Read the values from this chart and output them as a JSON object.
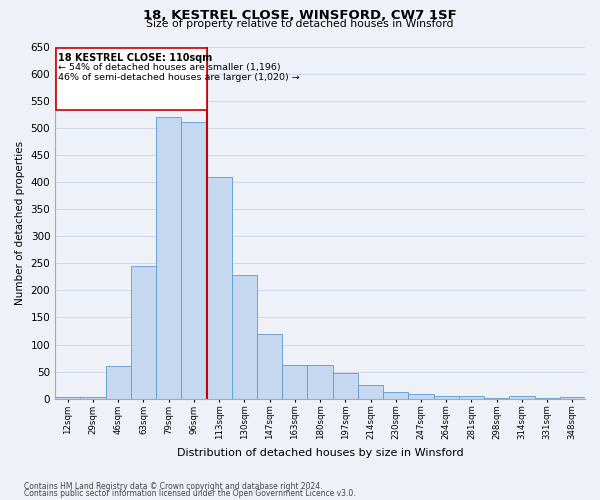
{
  "title": "18, KESTREL CLOSE, WINSFORD, CW7 1SF",
  "subtitle": "Size of property relative to detached houses in Winsford",
  "xlabel": "Distribution of detached houses by size in Winsford",
  "ylabel": "Number of detached properties",
  "bin_labels": [
    "12sqm",
    "29sqm",
    "46sqm",
    "63sqm",
    "79sqm",
    "96sqm",
    "113sqm",
    "130sqm",
    "147sqm",
    "163sqm",
    "180sqm",
    "197sqm",
    "214sqm",
    "230sqm",
    "247sqm",
    "264sqm",
    "281sqm",
    "298sqm",
    "314sqm",
    "331sqm",
    "348sqm"
  ],
  "bar_values": [
    3,
    3,
    60,
    245,
    520,
    510,
    410,
    228,
    120,
    63,
    63,
    47,
    25,
    12,
    8,
    5,
    5,
    1,
    5,
    1,
    3
  ],
  "bar_color": "#c5d8f0",
  "bar_edge_color": "#5b9bd5",
  "vline_x": 5.5,
  "marker_label": "18 KESTREL CLOSE: 110sqm",
  "annotation_line1": "← 54% of detached houses are smaller (1,196)",
  "annotation_line2": "46% of semi-detached houses are larger (1,020) →",
  "vline_color": "#cc0000",
  "annotation_box_edge": "#cc0000",
  "ylim": [
    0,
    650
  ],
  "yticks": [
    0,
    50,
    100,
    150,
    200,
    250,
    300,
    350,
    400,
    450,
    500,
    550,
    600,
    650
  ],
  "footer1": "Contains HM Land Registry data © Crown copyright and database right 2024.",
  "footer2": "Contains public sector information licensed under the Open Government Licence v3.0.",
  "bg_color": "#eef2f8",
  "grid_color": "#c8d4e8"
}
